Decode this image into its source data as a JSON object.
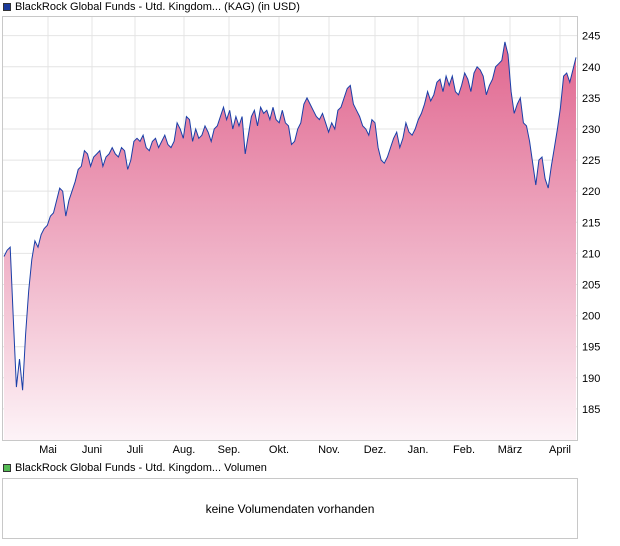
{
  "legend": {
    "price_label": "BlackRock Global Funds - Utd. Kingdom... (KAG) (in USD)",
    "volume_label": "BlackRock Global Funds - Utd. Kingdom... Volumen",
    "price_color": "#1a3a9a",
    "volume_color": "#55bb55"
  },
  "volume_panel": {
    "message": "keine Volumendaten vorhanden"
  },
  "colors": {
    "line": "#1a3fa8",
    "fill_top": "#e0668f",
    "fill_bottom": "#fdf3f7",
    "grid": "#e4e4e4"
  },
  "chart_data": {
    "type": "area",
    "title": "",
    "xlabel": "",
    "ylabel": "",
    "ylim": [
      180,
      248
    ],
    "y_ticks": [
      185,
      190,
      195,
      200,
      205,
      210,
      215,
      220,
      225,
      230,
      235,
      240,
      245
    ],
    "x_ticks": [
      "Mai",
      "Juni",
      "Juli",
      "Aug.",
      "Sep.",
      "Okt.",
      "Nov.",
      "Dez.",
      "Jan.",
      "Feb.",
      "März",
      "April"
    ],
    "grid": true,
    "series": [
      {
        "values": [
          209.5,
          210.5,
          211.0,
          199.5,
          188.5,
          193.0,
          188.0,
          197.0,
          204.0,
          209.0,
          212.0,
          211.0,
          213.0,
          214.0,
          214.5,
          216.0,
          216.5,
          218.5,
          220.5,
          220.0,
          216.0,
          218.5,
          220.0,
          221.5,
          223.5,
          224.0,
          226.5,
          226.0,
          224.0,
          225.5,
          226.0,
          226.5,
          224.0,
          225.5,
          226.0,
          227.0,
          226.0,
          225.5,
          227.0,
          226.5,
          223.5,
          225.0,
          228.0,
          228.5,
          228.0,
          229.0,
          227.0,
          226.5,
          228.0,
          228.5,
          227.0,
          228.0,
          229.0,
          227.5,
          227.0,
          228.0,
          231.0,
          230.0,
          228.5,
          232.0,
          231.5,
          228.0,
          230.0,
          228.5,
          229.0,
          230.5,
          229.5,
          228.0,
          230.0,
          230.5,
          232.0,
          233.5,
          231.5,
          233.0,
          230.0,
          232.0,
          230.5,
          232.0,
          226.0,
          229.0,
          232.0,
          233.0,
          230.5,
          233.5,
          232.5,
          233.0,
          231.5,
          233.5,
          231.5,
          231.0,
          233.0,
          231.0,
          230.5,
          227.5,
          228.0,
          230.0,
          231.0,
          234.0,
          235.0,
          234.0,
          233.0,
          232.0,
          231.5,
          232.5,
          231.0,
          229.5,
          231.0,
          230.0,
          233.0,
          233.5,
          235.0,
          236.5,
          237.0,
          234.0,
          233.0,
          232.0,
          230.5,
          230.0,
          229.0,
          231.5,
          231.0,
          227.0,
          225.0,
          224.5,
          225.5,
          227.0,
          228.5,
          229.5,
          227.0,
          228.5,
          231.0,
          229.5,
          229.0,
          230.0,
          231.5,
          232.5,
          234.0,
          236.0,
          234.5,
          235.5,
          237.5,
          238.0,
          236.0,
          238.5,
          237.0,
          238.5,
          236.0,
          235.5,
          237.0,
          239.0,
          238.0,
          236.0,
          239.0,
          240.0,
          239.5,
          238.5,
          235.5,
          237.0,
          238.0,
          240.0,
          240.5,
          241.0,
          244.0,
          242.0,
          236.0,
          232.5,
          234.0,
          235.0,
          231.0,
          230.5,
          228.0,
          224.5,
          221.0,
          225.0,
          225.5,
          222.0,
          220.5,
          224.0,
          227.0,
          230.0,
          233.5,
          238.5,
          239.0,
          237.5,
          239.5,
          241.5
        ]
      }
    ]
  }
}
